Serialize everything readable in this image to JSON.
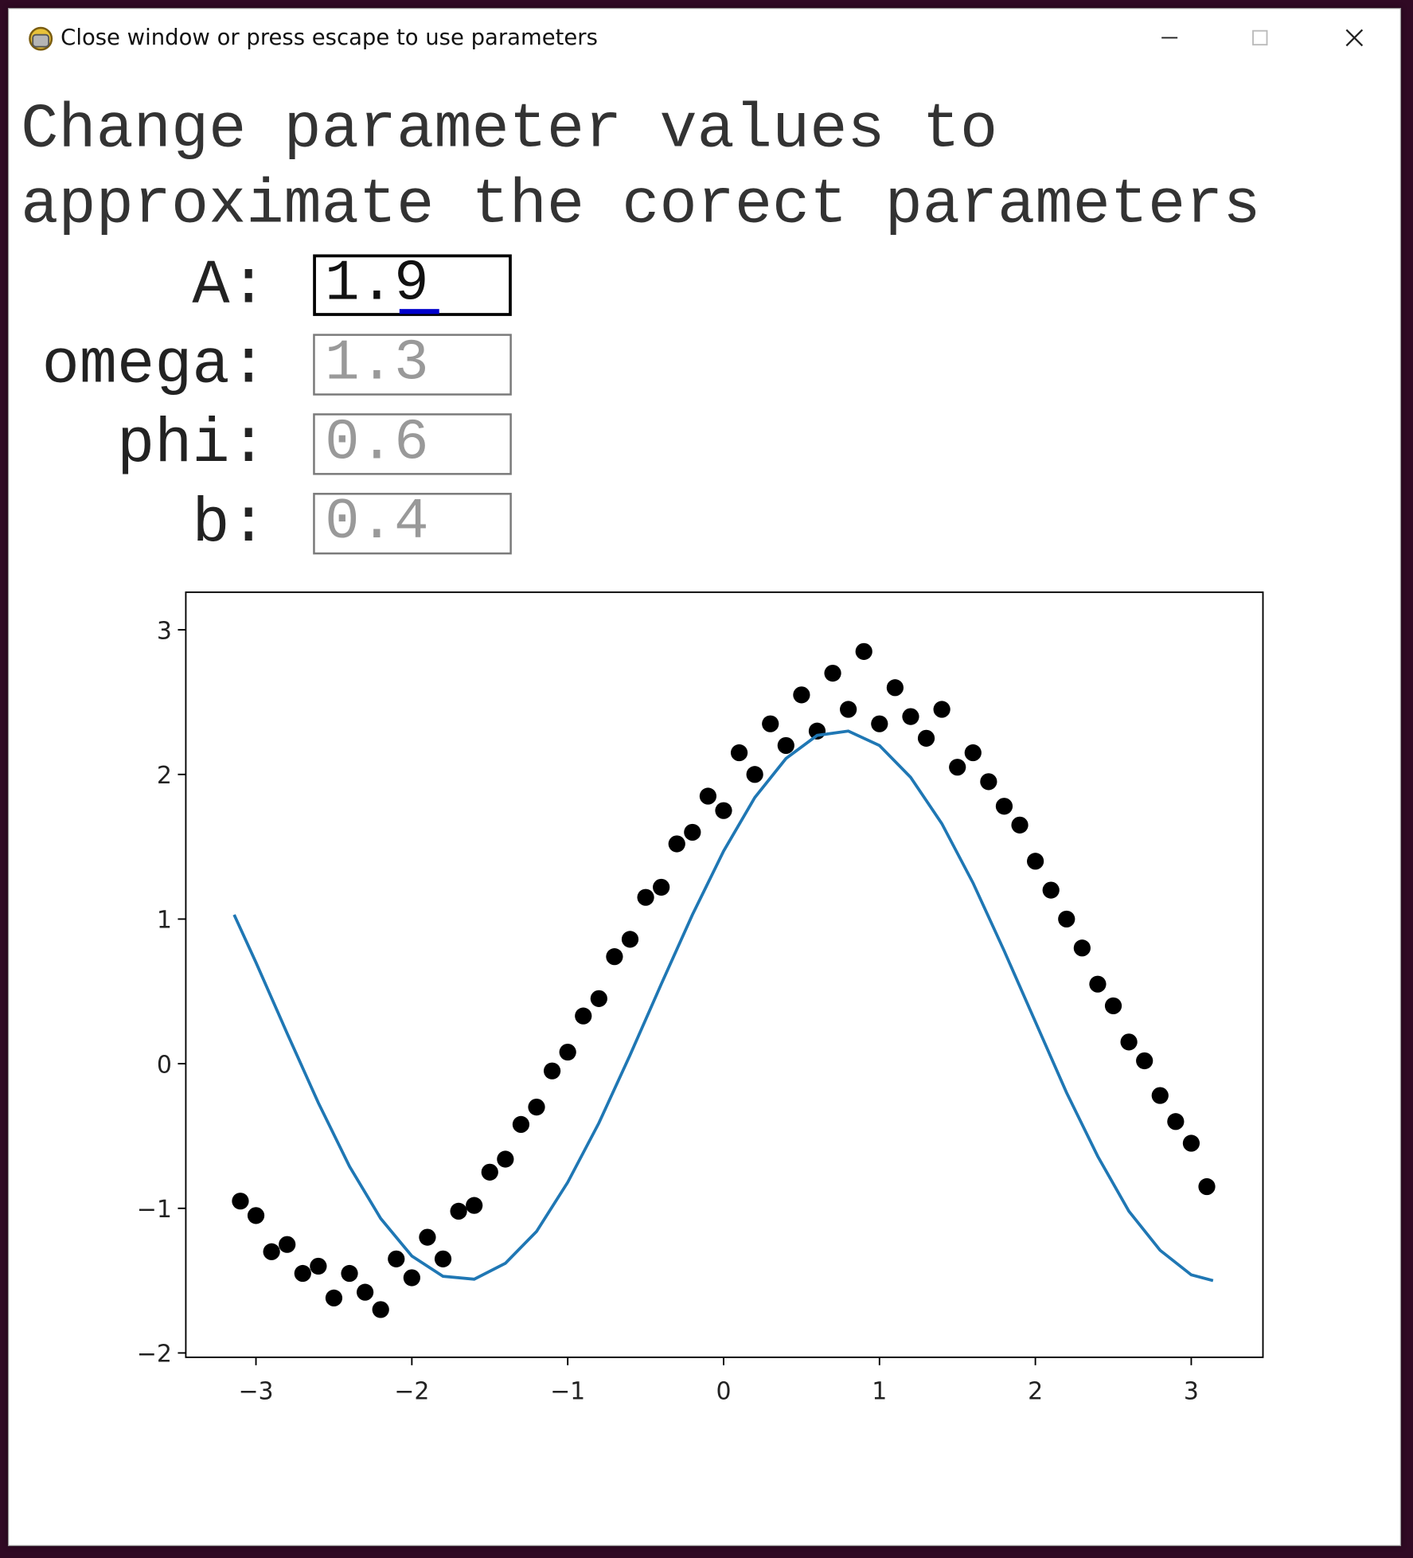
{
  "window": {
    "title": "Close window or press escape to use parameters"
  },
  "heading": "Change parameter values to approximate the corect parameters",
  "parameters": [
    {
      "label": "A:",
      "value": 1.9
    },
    {
      "label": "omega:",
      "value": 1.3
    },
    {
      "label": "phi:",
      "value": 0.6
    },
    {
      "label": "b:",
      "value": 0.4
    }
  ],
  "chart_data": {
    "type": "scatter",
    "xlim": [
      -3.45,
      3.46
    ],
    "ylim": [
      -2.03,
      3.26
    ],
    "xticks": [
      {
        "value": -3,
        "label": "−3"
      },
      {
        "value": -2,
        "label": "−2"
      },
      {
        "value": -1,
        "label": "−1"
      },
      0,
      1,
      2,
      3
    ],
    "yticks": [
      {
        "value": -2,
        "label": "−2"
      },
      {
        "value": -1,
        "label": "−1"
      },
      0,
      1,
      2,
      3
    ],
    "series": [
      {
        "type": "line",
        "color": "#1f77b4",
        "x": [
          -3.14,
          -3.0,
          -2.8,
          -2.6,
          -2.4,
          -2.2,
          -2.0,
          -1.8,
          -1.6,
          -1.4,
          -1.2,
          -1.0,
          -0.8,
          -0.6,
          -0.4,
          -0.2,
          0,
          0.2,
          0.4,
          0.6,
          0.8,
          1.0,
          1.2,
          1.4,
          1.6,
          1.8,
          2.0,
          2.2,
          2.4,
          2.6,
          2.8,
          3.0,
          3.14
        ],
        "values": [
          1.03,
          0.7,
          0.21,
          -0.27,
          -0.71,
          -1.07,
          -1.33,
          -1.47,
          -1.49,
          -1.38,
          -1.16,
          -0.82,
          -0.41,
          0.06,
          0.55,
          1.03,
          1.47,
          1.84,
          2.11,
          2.27,
          2.3,
          2.2,
          1.98,
          1.66,
          1.25,
          0.78,
          0.29,
          -0.2,
          -0.64,
          -1.02,
          -1.29,
          -1.46,
          -1.5
        ]
      },
      {
        "type": "scatter",
        "color": "#000000",
        "x": [
          -3.1,
          -3.0,
          -2.9,
          -2.8,
          -2.7,
          -2.6,
          -2.5,
          -2.4,
          -2.3,
          -2.2,
          -2.1,
          -2.0,
          -1.9,
          -1.8,
          -1.7,
          -1.6,
          -1.5,
          -1.4,
          -1.3,
          -1.2,
          -1.1,
          -1.0,
          -0.9,
          -0.8,
          -0.7,
          -0.6,
          -0.5,
          -0.4,
          -0.3,
          -0.2,
          -0.1,
          0,
          0.1,
          0.2,
          0.3,
          0.4,
          0.5,
          0.6,
          0.7,
          0.8,
          0.9,
          1.0,
          1.1,
          1.2,
          1.3,
          1.4,
          1.5,
          1.6,
          1.7,
          1.8,
          1.9,
          2.0,
          2.1,
          2.2,
          2.3,
          2.4,
          2.5,
          2.6,
          2.7,
          2.8,
          2.9,
          3.0,
          3.1
        ],
        "values": [
          -0.95,
          -1.05,
          -1.3,
          -1.25,
          -1.45,
          -1.4,
          -1.62,
          -1.45,
          -1.58,
          -1.7,
          -1.35,
          -1.48,
          -1.2,
          -1.35,
          -1.02,
          -0.98,
          -0.75,
          -0.66,
          -0.42,
          -0.3,
          -0.05,
          0.08,
          0.33,
          0.45,
          0.74,
          0.86,
          1.15,
          1.22,
          1.52,
          1.6,
          1.85,
          1.75,
          2.15,
          2.0,
          2.35,
          2.2,
          2.55,
          2.3,
          2.7,
          2.45,
          2.85,
          2.35,
          2.6,
          2.4,
          2.25,
          2.45,
          2.05,
          2.15,
          1.95,
          1.78,
          1.65,
          1.4,
          1.2,
          1.0,
          0.8,
          0.55,
          0.4,
          0.15,
          0.02,
          -0.22,
          -0.4,
          -0.55,
          -0.85
        ]
      }
    ]
  }
}
